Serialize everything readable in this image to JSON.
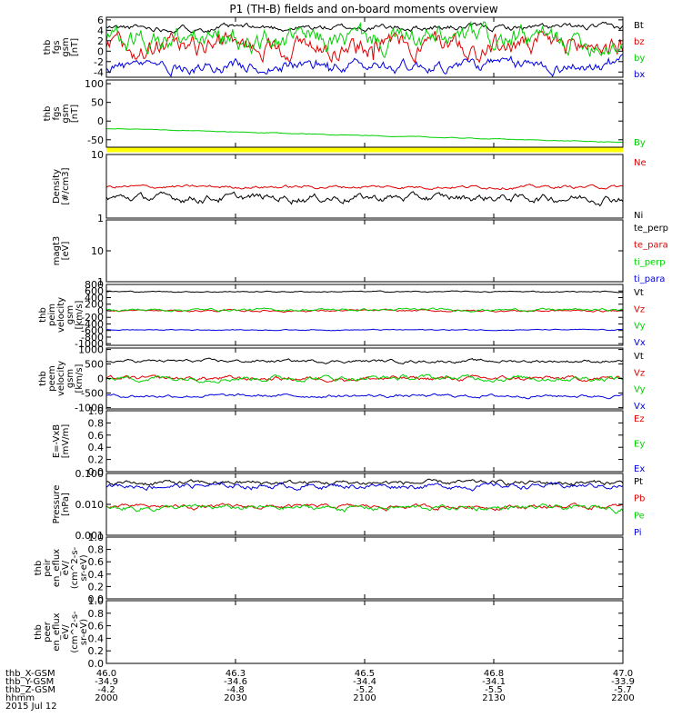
{
  "title": "P1  (TH-B) fields and on-board moments overview",
  "colors": {
    "black": "#000000",
    "red": "#e00000",
    "green": "#00d000",
    "blue": "#0000e0",
    "yellow": "#ffff00"
  },
  "chart_data": [
    {
      "type": "line",
      "ylabel_lines": [
        "thb",
        "fgs",
        "gsm",
        "[nT]"
      ],
      "ylim": [
        -5,
        6.5
      ],
      "yticks": [
        "6",
        "4",
        "2",
        "0",
        "-2",
        "-4"
      ],
      "ytick_values": [
        6,
        4,
        2,
        0,
        -2,
        -4
      ],
      "series": [
        {
          "name": "Bt",
          "color": "#000000",
          "level": 4.5,
          "noise": 0.4,
          "spike": 0
        },
        {
          "name": "bz",
          "color": "#e00000",
          "level": 1.0,
          "noise": 1.4,
          "spike": 2
        },
        {
          "name": "by",
          "color": "#00d000",
          "level": 2.0,
          "noise": 1.5,
          "spike": 0
        },
        {
          "name": "bx",
          "color": "#0000e0",
          "level": -2.8,
          "noise": 0.8,
          "spike": 1.5
        }
      ]
    },
    {
      "type": "line",
      "ylabel_lines": [
        "thb",
        "fgs",
        "gsm",
        "[nT]"
      ],
      "ylim": [
        -70,
        110
      ],
      "yticks": [
        "100",
        "50",
        "0",
        "-50"
      ],
      "ytick_values": [
        100,
        50,
        0,
        -50
      ],
      "band": {
        "color": "#ffff00",
        "at": -60
      },
      "series": [
        {
          "name": "By",
          "color": "#00d000",
          "start": -20,
          "end": -57,
          "noise": 0.6,
          "spike": 0
        }
      ]
    },
    {
      "type": "line",
      "log": true,
      "ylabel_lines": [
        "Density",
        "[#/cm3]"
      ],
      "ylim": [
        1,
        10
      ],
      "yticks": [
        "10",
        "1"
      ],
      "ytick_values": [
        10,
        1
      ],
      "series": [
        {
          "name": "Ne",
          "color": "#e00000",
          "level": 3.1,
          "noise": 0.12,
          "spike": 0
        },
        {
          "name": "Ni",
          "color": "#000000",
          "level": 2.1,
          "noise": 0.2,
          "spike": 0
        }
      ]
    },
    {
      "type": "line",
      "log": true,
      "ylabel_lines": [
        "magt3",
        "[eV]"
      ],
      "ylim": [
        1,
        100
      ],
      "yticks": [
        "10",
        "1"
      ],
      "ytick_values": [
        10,
        1
      ],
      "series": [
        {
          "name": "te_perp",
          "color": "#000000",
          "empty": true
        },
        {
          "name": "te_para",
          "color": "#e00000",
          "empty": true
        },
        {
          "name": "ti_perp",
          "color": "#00d000",
          "empty": true
        },
        {
          "name": "ti_para",
          "color": "#0000e0",
          "empty": true
        }
      ]
    },
    {
      "type": "line",
      "ylabel_lines": [
        "thb",
        "peim",
        "velocity",
        "gsm",
        "[km/s]"
      ],
      "ylim": [
        -1050,
        800
      ],
      "yticks": [
        "800",
        "600",
        "400",
        "200",
        "0",
        "-200",
        "-400",
        "-600",
        "-800",
        "-1000"
      ],
      "ytick_values": [
        800,
        600,
        400,
        200,
        0,
        -200,
        -400,
        -600,
        -800,
        -1000
      ],
      "series": [
        {
          "name": "Vt",
          "color": "#000000",
          "level": 580,
          "noise": 12,
          "spike": 0
        },
        {
          "name": "Vz",
          "color": "#e00000",
          "level": 0,
          "noise": 20,
          "spike": 0
        },
        {
          "name": "Vy",
          "color": "#00d000",
          "level": 30,
          "noise": 25,
          "spike": 0
        },
        {
          "name": "Vx",
          "color": "#0000e0",
          "level": -580,
          "noise": 10,
          "spike": 0
        }
      ]
    },
    {
      "type": "line",
      "ylabel_lines": [
        "thb",
        "peem",
        "velocity",
        "gsm",
        "[km/s]"
      ],
      "ylim": [
        -1050,
        1050
      ],
      "yticks": [
        "1000",
        "500",
        "0",
        "-500",
        "-1000"
      ],
      "ytick_values": [
        1000,
        500,
        0,
        -500,
        -1000
      ],
      "series": [
        {
          "name": "Vt",
          "color": "#000000",
          "level": 600,
          "noise": 35,
          "spike": 0
        },
        {
          "name": "Vz",
          "color": "#e00000",
          "level": 0,
          "noise": 50,
          "spike": 0
        },
        {
          "name": "Vy",
          "color": "#00d000",
          "level": 20,
          "noise": 60,
          "spike": 0
        },
        {
          "name": "Vx",
          "color": "#0000e0",
          "level": -600,
          "noise": 35,
          "spike": 0
        }
      ]
    },
    {
      "type": "line",
      "ylabel_lines": [
        "E=-VxB",
        "[mV/m]"
      ],
      "ylim": [
        0,
        1
      ],
      "yticks": [
        "1.0",
        "0.8",
        "0.6",
        "0.4",
        "0.2",
        "0.0"
      ],
      "ytick_values": [
        1,
        0.8,
        0.6,
        0.4,
        0.2,
        0
      ],
      "series": [
        {
          "name": "Ez",
          "color": "#e00000",
          "empty": true
        },
        {
          "name": "Ey",
          "color": "#00d000",
          "empty": true
        },
        {
          "name": "Ex",
          "color": "#0000e0",
          "empty": true
        }
      ]
    },
    {
      "type": "line",
      "log": true,
      "ylabel_lines": [
        "Pressure",
        "[nPa]"
      ],
      "ylim": [
        0.001,
        0.1
      ],
      "yticks": [
        "0.100",
        "0.010",
        "0.001"
      ],
      "ytick_values": [
        0.1,
        0.01,
        0.001
      ],
      "series": [
        {
          "name": "Pt",
          "color": "#000000",
          "level": 0.05,
          "noise": 0.006,
          "spike": 0
        },
        {
          "name": "Pb",
          "color": "#e00000",
          "level": 0.0085,
          "noise": 0.0009,
          "spike": 0
        },
        {
          "name": "Pe",
          "color": "#00d000",
          "level": 0.0078,
          "noise": 0.001,
          "spike": 0
        },
        {
          "name": "Pi",
          "color": "#0000e0",
          "level": 0.04,
          "noise": 0.005,
          "spike": 0
        }
      ]
    },
    {
      "type": "line",
      "ylabel_lines": [
        "thb",
        "peir",
        "en_eflux",
        "eV/",
        "(cm^2-s-",
        "sr-eV)"
      ],
      "ylim": [
        0,
        1
      ],
      "yticks": [
        "1.0",
        "0.8",
        "0.6",
        "0.4",
        "0.2",
        "0.0"
      ],
      "ytick_values": [
        1,
        0.8,
        0.6,
        0.4,
        0.2,
        0
      ],
      "series": []
    },
    {
      "type": "line",
      "ylabel_lines": [
        "thb",
        "peer",
        "en_eflux",
        "eV/",
        "(cm^2-s-",
        "sr-eV)"
      ],
      "ylim": [
        0,
        1
      ],
      "yticks": [
        "1.0",
        "0.8",
        "0.6",
        "0.4",
        "0.2",
        "0.0"
      ],
      "ytick_values": [
        1,
        0.8,
        0.6,
        0.4,
        0.2,
        0
      ],
      "series": []
    }
  ],
  "xaxis": {
    "xlim": [
      0,
      4
    ],
    "tick_values": [
      0,
      1,
      2,
      3,
      4
    ],
    "rows": [
      {
        "label": "thb_X-GSM",
        "values": [
          "46.0",
          "46.3",
          "46.5",
          "46.8",
          "47.0"
        ]
      },
      {
        "label": "thb_Y-GSM",
        "values": [
          "-34.9",
          "-34.6",
          "-34.4",
          "-34.1",
          "-33.9"
        ]
      },
      {
        "label": "thb_Z-GSM",
        "values": [
          "-4.2",
          "-4.8",
          "-5.2",
          "-5.5",
          "-5.7"
        ]
      },
      {
        "label": "hhmm",
        "values": [
          "2000",
          "2030",
          "2100",
          "2130",
          "2200"
        ]
      }
    ],
    "date": "2015 Jul 12"
  }
}
